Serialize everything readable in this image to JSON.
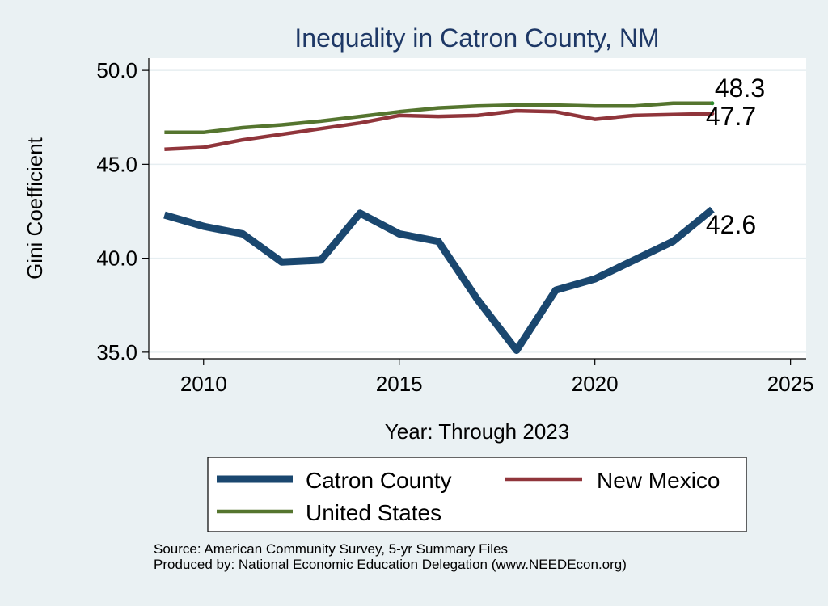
{
  "chart_data": {
    "type": "line",
    "title": "Inequality in Catron County, NM",
    "xlabel": "Year: Through 2023",
    "ylabel": "Gini Coefficient",
    "xlim": [
      2008.6,
      2025.4
    ],
    "ylim": [
      34.65,
      50.65
    ],
    "xticks": [
      2010,
      2015,
      2020,
      2025
    ],
    "yticks": [
      35.0,
      40.0,
      45.0,
      50.0
    ],
    "ytick_labels": [
      "35.0",
      "40.0",
      "45.0",
      "50.0"
    ],
    "grid": true,
    "legend_position": "bottom",
    "series": [
      {
        "name": "Catron County",
        "color": "#1a476f",
        "x": [
          2009,
          2010,
          2011,
          2012,
          2013,
          2014,
          2015,
          2016,
          2017,
          2018,
          2019,
          2020,
          2021,
          2022,
          2023
        ],
        "values": [
          42.3,
          41.7,
          41.3,
          39.8,
          39.9,
          42.4,
          41.3,
          40.9,
          37.8,
          35.1,
          38.3,
          38.9,
          39.9,
          40.9,
          42.6
        ],
        "end_label": "42.6"
      },
      {
        "name": "New Mexico",
        "color": "#90353b",
        "x": [
          2009,
          2010,
          2011,
          2012,
          2013,
          2014,
          2015,
          2016,
          2017,
          2018,
          2019,
          2020,
          2021,
          2022,
          2023
        ],
        "values": [
          45.8,
          45.9,
          46.3,
          46.6,
          46.9,
          47.2,
          47.6,
          47.55,
          47.6,
          47.85,
          47.8,
          47.4,
          47.6,
          47.65,
          47.7
        ],
        "end_label": "47.7"
      },
      {
        "name": "United States",
        "color": "#55752f",
        "x": [
          2009,
          2010,
          2011,
          2012,
          2013,
          2014,
          2015,
          2016,
          2017,
          2018,
          2019,
          2020,
          2021,
          2022,
          2023
        ],
        "values": [
          46.7,
          46.7,
          46.95,
          47.1,
          47.3,
          47.55,
          47.8,
          48.0,
          48.1,
          48.15,
          48.15,
          48.1,
          48.1,
          48.25,
          48.25
        ],
        "end_label": "48.3"
      }
    ]
  },
  "source": {
    "line1": "Source: American Community Survey, 5-yr Summary Files",
    "line2": "Produced by: National Economic Education Delegation (www.NEEDEcon.org)"
  }
}
